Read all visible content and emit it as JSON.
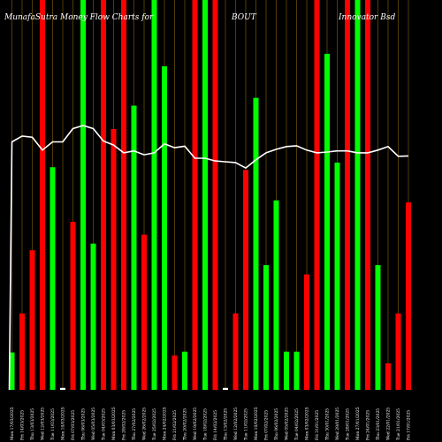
{
  "chart_data": {
    "type": "bar",
    "title_parts": [
      "MunafaSutra  Money Flow  Charts for",
      "BOUT",
      "Innovator Bsd"
    ],
    "xlabel": "",
    "ylabel": "",
    "ylim": [
      0,
      100
    ],
    "grid": "vertical",
    "colors": {
      "up": "#00ff00",
      "down": "#ff0000",
      "line": "#ffffff",
      "grid": "#b8860b",
      "background": "#000000"
    },
    "categories": [
      "Mon 17/03/2025 ⁠",
      "Fri 14/03/2025 ⁠",
      "Thu 13/03/2025 ⁠",
      "Wed 12/03/2025 ⁠",
      "Tue 11/03/2025 ⁠",
      "Mon 10/03/2025 ⁠",
      "Fri 07/03/2025 ⁠",
      "Thu 06/03/2025 ⁠",
      "Wed 05/03/2025 ⁠",
      "Tue 04/03/2025 ⁠",
      "Mon 03/03/2025 ⁠",
      "Fri 28/02/2025 ⁠",
      "Thu 27/02/2025 ⁠",
      "Wed 26/02/2025 ⁠",
      "Tue 25/02/2025 ⁠",
      "Mon 24/02/2025 ⁠",
      "Fri 21/02/2025 ⁠",
      "Thu 20/02/2025 ⁠",
      "Wed 19/02/2025 ⁠",
      "Tue 18/02/2025 ⁠",
      "Fri 14/02/2025 ⁠",
      "Thu 13/02/2025 ⁠",
      "Wed 12/02/2025 ⁠",
      "Tue 11/02/2025 ⁠",
      "Mon 10/02/2025 ⁠",
      "Fri 07/02/2025 ⁠",
      "Thu 06/02/2025 ⁠",
      "Wed 05/02/2025 ⁠",
      "Tue 04/02/2025 ⁠",
      "Mon 03/02/2025 ⁠",
      "Fri 31/01/2025 ⁠",
      "Thu 30/01/2025 ⁠",
      "Wed 29/01/2025 ⁠",
      "Tue 28/01/2025 ⁠",
      "Mon 27/01/2025 ⁠",
      "Fri 24/01/2025 ⁠",
      "Thu 23/01/2025 ⁠",
      "Wed 22/01/2025 ⁠",
      "Tue 21/01/2025 ⁠",
      "Fri 17/01/2025 ⁠"
    ],
    "bars": [
      {
        "value": 9.6,
        "dir": "up"
      },
      {
        "value": 19.6,
        "dir": "down"
      },
      {
        "value": 35.8,
        "dir": "down"
      },
      {
        "value": 100,
        "dir": "down"
      },
      {
        "value": 57.1,
        "dir": "up"
      },
      {
        "value": 0.5,
        "dir": "flat"
      },
      {
        "value": 43.1,
        "dir": "down"
      },
      {
        "value": 100,
        "dir": "up"
      },
      {
        "value": 37.5,
        "dir": "up"
      },
      {
        "value": 100,
        "dir": "down"
      },
      {
        "value": 66.9,
        "dir": "down"
      },
      {
        "value": 100,
        "dir": "down"
      },
      {
        "value": 72.9,
        "dir": "up"
      },
      {
        "value": 39.8,
        "dir": "down"
      },
      {
        "value": 100,
        "dir": "up"
      },
      {
        "value": 83.0,
        "dir": "up"
      },
      {
        "value": 8.8,
        "dir": "down"
      },
      {
        "value": 9.8,
        "dir": "up"
      },
      {
        "value": 100,
        "dir": "down"
      },
      {
        "value": 100,
        "dir": "up"
      },
      {
        "value": 100,
        "dir": "down"
      },
      {
        "value": 0.5,
        "dir": "flat"
      },
      {
        "value": 19.6,
        "dir": "down"
      },
      {
        "value": 56.4,
        "dir": "down"
      },
      {
        "value": 74.9,
        "dir": "up"
      },
      {
        "value": 32.0,
        "dir": "up"
      },
      {
        "value": 48.6,
        "dir": "up"
      },
      {
        "value": 9.8,
        "dir": "up"
      },
      {
        "value": 9.8,
        "dir": "up"
      },
      {
        "value": 29.6,
        "dir": "down"
      },
      {
        "value": 100,
        "dir": "down"
      },
      {
        "value": 86.2,
        "dir": "up"
      },
      {
        "value": 58.3,
        "dir": "up"
      },
      {
        "value": 100,
        "dir": "down"
      },
      {
        "value": 100,
        "dir": "up"
      },
      {
        "value": 100,
        "dir": "down"
      },
      {
        "value": 32.0,
        "dir": "up"
      },
      {
        "value": 6.8,
        "dir": "down"
      },
      {
        "value": 19.6,
        "dir": "down"
      },
      {
        "value": 48.1,
        "dir": "down"
      }
    ],
    "line": [
      63.6,
      65.1,
      64.8,
      61.5,
      63.6,
      63.6,
      67.0,
      67.8,
      67.0,
      63.8,
      62.8,
      60.8,
      61.3,
      60.3,
      60.8,
      63.1,
      62.1,
      62.5,
      59.4,
      59.4,
      58.7,
      58.5,
      58.3,
      56.9,
      59.0,
      60.8,
      61.7,
      62.4,
      62.6,
      61.5,
      60.8,
      61.0,
      61.3,
      61.3,
      60.8,
      60.8,
      61.5,
      62.4,
      59.9,
      60.0
    ]
  }
}
